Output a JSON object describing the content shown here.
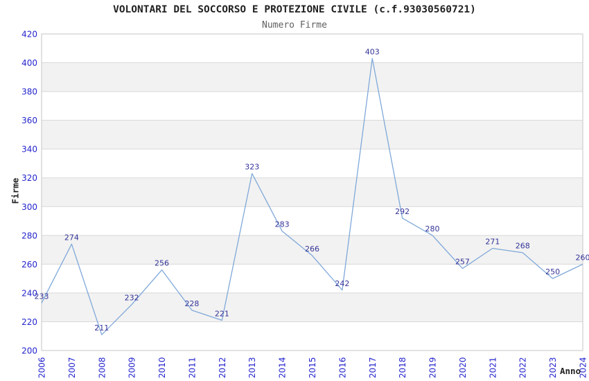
{
  "chart_data": {
    "type": "line",
    "title": "VOLONTARI DEL SOCCORSO E PROTEZIONE CIVILE (c.f.93030560721)",
    "subtitle": "Numero Firme",
    "xlabel": "Anno",
    "ylabel": "Firme",
    "categories": [
      "2006",
      "2007",
      "2008",
      "2009",
      "2010",
      "2011",
      "2012",
      "2013",
      "2014",
      "2015",
      "2016",
      "2017",
      "2018",
      "2019",
      "2020",
      "2021",
      "2022",
      "2023",
      "2024"
    ],
    "values": [
      233,
      274,
      211,
      232,
      256,
      228,
      221,
      323,
      283,
      266,
      242,
      403,
      292,
      280,
      257,
      271,
      268,
      250,
      260
    ],
    "point_labels": [
      "233",
      "274",
      "211",
      "232",
      "256",
      "228",
      "221",
      "323",
      "283",
      "266",
      "242",
      "403",
      "292",
      "280",
      "257",
      "271",
      "268",
      "250",
      "260"
    ],
    "ylim": [
      200,
      420
    ],
    "yticks": [
      200,
      220,
      240,
      260,
      280,
      300,
      320,
      340,
      360,
      380,
      400,
      420
    ],
    "ytick_step": 20,
    "grid": true,
    "band_fill": "alternate-horizontal",
    "legend_position": "none",
    "colors": {
      "line": "#7fa8d9",
      "series_line": "#7fa8d9",
      "point_label": "#333399",
      "tick_label": "#2424cd",
      "axis_title": "#222222",
      "title_text": "#222222",
      "subtitle_text": "#5f5f5f",
      "plot_border": "#c4c4c4",
      "gridline": "#d8d8d8",
      "band": "#f2f2f2",
      "background": "#ffffff"
    }
  }
}
